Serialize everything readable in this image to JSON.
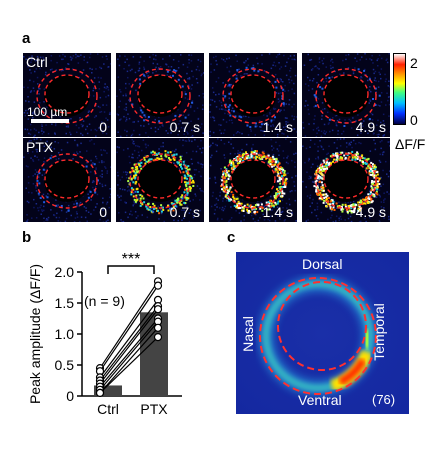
{
  "panel_a": {
    "letter": "a",
    "rows": [
      {
        "condition": "Ctrl",
        "times": [
          "0",
          "0.7 s",
          "1.4 s",
          "4.9 s"
        ],
        "intensity": [
          0.0,
          0.05,
          0.08,
          0.04
        ]
      },
      {
        "condition": "PTX",
        "times": [
          "0",
          "0.7 s",
          "1.4 s",
          "4.9 s"
        ],
        "intensity": [
          0.05,
          0.55,
          0.85,
          1.0
        ]
      }
    ],
    "scale_bar_label": "100 µm",
    "colorbar": {
      "max_label": "2",
      "min_label": "0",
      "unit_label": "ΔF/F"
    }
  },
  "chart_data": {
    "type": "bar",
    "letter": "b",
    "categories": [
      "Ctrl",
      "PTX"
    ],
    "values": [
      0.17,
      1.35
    ],
    "ylabel": "Peak amplitude (ΔF/F)",
    "ylim": [
      0,
      2.0
    ],
    "yticks": [
      "0",
      "0.5",
      "1.0",
      "1.5",
      "2.0"
    ],
    "paired_points": [
      [
        0.45,
        1.85
      ],
      [
        0.4,
        1.78
      ],
      [
        0.3,
        1.55
      ],
      [
        0.25,
        1.45
      ],
      [
        0.2,
        1.4
      ],
      [
        0.15,
        1.25
      ],
      [
        0.1,
        1.2
      ],
      [
        0.05,
        1.1
      ],
      [
        0.05,
        0.95
      ]
    ],
    "n_label": "(n = 9)",
    "significance": "***",
    "bar_color": "#444444"
  },
  "panel_c": {
    "letter": "c",
    "labels": {
      "top": "Dorsal",
      "bottom": "Ventral",
      "left": "Nasal",
      "right": "Temporal"
    },
    "count": "(76)"
  }
}
